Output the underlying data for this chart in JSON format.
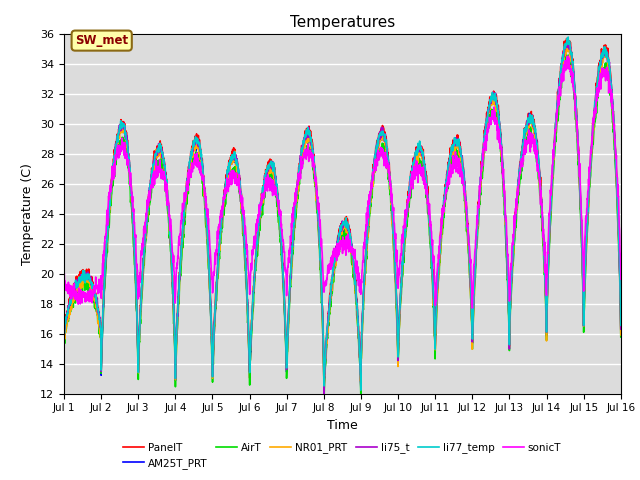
{
  "title": "Temperatures",
  "xlabel": "Time",
  "ylabel": "Temperature (C)",
  "ylim": [
    12,
    36
  ],
  "xlim": [
    0,
    15
  ],
  "xtick_labels": [
    "Jul 1",
    "Jul 2",
    "Jul 3",
    "Jul 4",
    "Jul 5",
    "Jul 6",
    "Jul 7",
    "Jul 8",
    "Jul 9",
    "Jul 10",
    "Jul 11",
    "Jul 12",
    "Jul 13",
    "Jul 14",
    "Jul 15",
    "Jul 16"
  ],
  "ytick_values": [
    12,
    14,
    16,
    18,
    20,
    22,
    24,
    26,
    28,
    30,
    32,
    34,
    36
  ],
  "annotation_text": "SW_met",
  "series": {
    "PanelT": {
      "color": "#ff0000",
      "lw": 1.2
    },
    "AM25T_PRT": {
      "color": "#0000ff",
      "lw": 1.2
    },
    "AirT": {
      "color": "#00dd00",
      "lw": 1.2
    },
    "NR01_PRT": {
      "color": "#ffaa00",
      "lw": 1.2
    },
    "li75_t": {
      "color": "#aa00cc",
      "lw": 1.2
    },
    "li77_temp": {
      "color": "#00cccc",
      "lw": 1.2
    },
    "sonicT": {
      "color": "#ff00ff",
      "lw": 1.2
    }
  },
  "bg_color": "#dcdcdc",
  "fig_bg": "#ffffff",
  "grid_color": "#ffffff",
  "title_fontsize": 11,
  "daily_max": [
    20.0,
    30.0,
    28.5,
    29.0,
    28.0,
    27.5,
    29.5,
    23.5,
    29.5,
    28.5,
    29.0,
    32.0,
    30.5,
    35.5,
    35.0
  ],
  "daily_min_base": [
    16.0,
    13.5,
    13.5,
    13.0,
    13.0,
    13.0,
    13.5,
    12.0,
    14.0,
    14.5,
    15.5,
    15.0,
    16.0,
    16.5,
    16.5
  ],
  "daily_min_orange": [
    15.5,
    14.0,
    13.5,
    13.0,
    13.0,
    13.5,
    13.5,
    12.0,
    13.5,
    14.5,
    15.0,
    15.0,
    16.0,
    16.5,
    16.5
  ],
  "sonic_night": [
    19.5,
    18.0,
    18.0,
    18.5,
    18.5,
    18.5,
    18.5,
    18.5,
    18.5,
    18.5,
    17.5,
    17.5,
    18.0,
    19.0,
    19.5
  ]
}
